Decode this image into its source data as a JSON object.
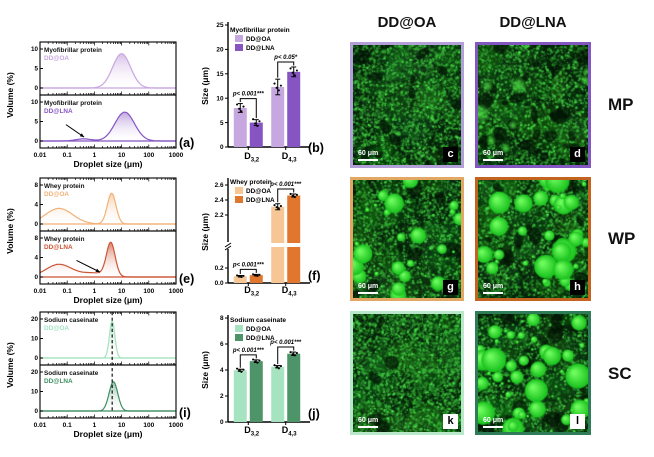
{
  "chart_data": [
    {
      "id": "a",
      "type": "area",
      "panel_tag": "(a)",
      "xlabel": "Droplet size (μm)",
      "ylabel": "Volume (%)",
      "x_scale": "log",
      "x_range": [
        0.01,
        1000
      ],
      "x_ticks": [
        "0.01",
        "0.1",
        "1",
        "10",
        "100",
        "1000"
      ],
      "subplots": [
        {
          "title": "Myofibrillar protein",
          "series": "DD@OA",
          "color": "#c7a7e0",
          "ylim": [
            0,
            10
          ],
          "yticks": [
            0,
            5,
            10
          ],
          "peaks": [
            {
              "center_um": 10,
              "height_pct": 8.8,
              "log_width": 0.33
            }
          ]
        },
        {
          "title": "Myofibrillar protein",
          "series": "DD@LNA",
          "color": "#8655c2",
          "ylim": [
            0,
            10
          ],
          "yticks": [
            0,
            5,
            10
          ],
          "peaks": [
            {
              "center_um": 13,
              "height_pct": 7.4,
              "log_width": 0.36
            },
            {
              "center_um": 0.4,
              "height_pct": 0.55,
              "log_width": 0.28
            }
          ],
          "arrow": {
            "from_um": 0.09,
            "from_val": 4.2,
            "to_um": 0.42,
            "to_val": 1.0
          }
        }
      ]
    },
    {
      "id": "b",
      "type": "bar",
      "panel_tag": "(b)",
      "title": "Myofibrillar protein",
      "ylabel": "Size (μm)",
      "ylim": [
        0,
        25
      ],
      "yticks": [
        {
          "v": 0,
          "label": "0"
        },
        {
          "v": 5,
          "label": "5"
        },
        {
          "v": 10,
          "label": "10"
        },
        {
          "v": 15,
          "label": "15"
        },
        {
          "v": 20,
          "label": "20"
        },
        {
          "v": 25,
          "label": "25"
        }
      ],
      "categories": [
        {
          "main": "D",
          "sub": "3,2"
        },
        {
          "main": "D",
          "sub": "4,3"
        }
      ],
      "series": [
        {
          "name": "DD@OA",
          "color": "#c7a7e0",
          "values": [
            8.0,
            12.3
          ],
          "errors": [
            0.9,
            1.6
          ]
        },
        {
          "name": "DD@LNA",
          "color": "#8655c2",
          "values": [
            5.0,
            15.4
          ],
          "errors": [
            0.6,
            1.0
          ]
        }
      ],
      "significance": [
        "p< 0.001***",
        "p< 0.05*"
      ]
    },
    {
      "id": "e",
      "type": "area",
      "panel_tag": "(e)",
      "xlabel": "Droplet size (μm)",
      "ylabel": "Volume (%)",
      "x_scale": "log",
      "x_range": [
        0.01,
        1000
      ],
      "x_ticks": [
        "0.01",
        "0.1",
        "1",
        "10",
        "100",
        "1000"
      ],
      "subplots": [
        {
          "title": "Whey protein",
          "series": "DD@OA",
          "color": "#f2b176",
          "ylim": [
            0,
            8
          ],
          "yticks": [
            0,
            4,
            8
          ],
          "peaks": [
            {
              "center_um": 0.05,
              "height_pct": 3.2,
              "log_width": 0.5
            },
            {
              "center_um": 4.3,
              "height_pct": 6.3,
              "log_width": 0.16
            }
          ]
        },
        {
          "title": "Whey protein",
          "series": "DD@LNA",
          "color": "#cc5535",
          "ylim": [
            0,
            8
          ],
          "yticks": [
            0,
            4,
            8
          ],
          "peaks": [
            {
              "center_um": 0.05,
              "height_pct": 2.6,
              "log_width": 0.48
            },
            {
              "center_um": 1.0,
              "height_pct": 0.8,
              "log_width": 0.45
            },
            {
              "center_um": 4.0,
              "height_pct": 6.8,
              "log_width": 0.16
            }
          ],
          "arrow": {
            "from_um": 0.22,
            "from_val": 3.4,
            "to_um": 1.6,
            "to_val": 1.0
          }
        }
      ]
    },
    {
      "id": "f",
      "type": "bar",
      "panel_tag": "(f)",
      "title": "Whey protein",
      "ylabel": "Size (μm)",
      "broken_axis": true,
      "yticks": [
        {
          "v": 0,
          "label": "0.0"
        },
        {
          "v": 0.2,
          "label": "0.2"
        },
        {
          "v": 2.2,
          "label": "2.2"
        },
        {
          "v": 2.4,
          "label": "2.4"
        },
        {
          "v": 2.6,
          "label": "2.6"
        }
      ],
      "categories": [
        {
          "main": "D",
          "sub": "3,2"
        },
        {
          "main": "D",
          "sub": "4,3"
        }
      ],
      "series": [
        {
          "name": "DD@OA",
          "color": "#f6c694",
          "values": [
            0.09,
            2.31
          ],
          "errors": [
            0.01,
            0.04
          ]
        },
        {
          "name": "DD@LNA",
          "color": "#e1762f",
          "values": [
            0.105,
            2.46
          ],
          "errors": [
            0.01,
            0.02
          ]
        }
      ],
      "significance": [
        "p< 0.001***",
        "p< 0.001***"
      ]
    },
    {
      "id": "i",
      "type": "area",
      "panel_tag": "(i)",
      "xlabel": "Droplet size (μm)",
      "ylabel": "Volume (%)",
      "x_scale": "log",
      "x_range": [
        0.01,
        1000
      ],
      "x_ticks": [
        "0.01",
        "0.1",
        "1",
        "10",
        "100",
        "1000"
      ],
      "dashed_line_um": 4.5,
      "subplots": [
        {
          "title": "Sodium caseinate",
          "series": "DD@OA",
          "color": "#a6e3c0",
          "ylim": [
            0,
            20
          ],
          "yticks": [
            0,
            10,
            20
          ],
          "peaks": [
            {
              "center_um": 4.5,
              "height_pct": 19,
              "log_width": 0.1
            }
          ]
        },
        {
          "title": "Sodium caseinate",
          "series": "DD@LNA",
          "color": "#3f8f63",
          "ylim": [
            0,
            20
          ],
          "yticks": [
            0,
            10,
            20
          ],
          "peaks": [
            {
              "center_um": 5.0,
              "height_pct": 15,
              "log_width": 0.16
            }
          ]
        }
      ]
    },
    {
      "id": "j",
      "type": "bar",
      "panel_tag": "(j)",
      "title": "Sodium caseinate",
      "ylabel": "Size (μm)",
      "ylim": [
        0,
        8
      ],
      "yticks": [
        {
          "v": 0,
          "label": "0"
        },
        {
          "v": 2,
          "label": "2"
        },
        {
          "v": 4,
          "label": "4"
        },
        {
          "v": 6,
          "label": "6"
        },
        {
          "v": 8,
          "label": "8"
        }
      ],
      "categories": [
        {
          "main": "D",
          "sub": "3,2"
        },
        {
          "main": "D",
          "sub": "4,3"
        }
      ],
      "series": [
        {
          "name": "DD@OA",
          "color": "#a6e3c0",
          "values": [
            3.98,
            4.25
          ],
          "errors": [
            0.08,
            0.09
          ]
        },
        {
          "name": "DD@LNA",
          "color": "#4d9468",
          "values": [
            4.68,
            5.25
          ],
          "errors": [
            0.1,
            0.13
          ]
        }
      ],
      "significance": [
        "p< 0.001***",
        "p< 0.001***"
      ]
    }
  ],
  "micrographs": {
    "column_headers": [
      "DD@OA",
      "DD@LNA"
    ],
    "row_labels": [
      "MP",
      "WP",
      "SC"
    ],
    "scale_bar_label": "60 μm",
    "panels": [
      {
        "letter": "c",
        "row": "MP",
        "column": "DD@OA",
        "border_color": "#b3a0d8",
        "letter_box": "black",
        "texture": {
          "seed": 3,
          "dots": 3600,
          "patches": 18,
          "droplets": 0,
          "droplet_rmax": 0,
          "blobs": 0
        }
      },
      {
        "letter": "d",
        "row": "MP",
        "column": "DD@LNA",
        "border_color": "#8257c0",
        "letter_box": "black",
        "texture": {
          "seed": 7,
          "dots": 3000,
          "patches": 30,
          "droplets": 0,
          "droplet_rmax": 0,
          "blobs": 8
        }
      },
      {
        "letter": "g",
        "row": "WP",
        "column": "DD@OA",
        "border_color": "#e2a763",
        "letter_box": "black",
        "texture": {
          "seed": 11,
          "dots": 3000,
          "patches": 14,
          "droplets": 26,
          "droplet_rmax": 9,
          "blobs": 0
        }
      },
      {
        "letter": "h",
        "row": "WP",
        "column": "DD@LNA",
        "border_color": "#c2641f",
        "letter_box": "black",
        "texture": {
          "seed": 13,
          "dots": 2900,
          "patches": 18,
          "droplets": 40,
          "droplet_rmax": 11,
          "blobs": 0,
          "right_bias": true
        }
      },
      {
        "letter": "k",
        "row": "SC",
        "column": "DD@OA",
        "border_color": "#b9e7c9",
        "letter_box": "white",
        "texture": {
          "seed": 17,
          "dots": 4200,
          "patches": 8,
          "droplets": 0,
          "droplet_rmax": 0,
          "blobs": 0
        }
      },
      {
        "letter": "l",
        "row": "SC",
        "column": "DD@LNA",
        "border_color": "#2e7d56",
        "letter_box": "white",
        "texture": {
          "seed": 19,
          "dots": 2600,
          "patches": 30,
          "droplets": 46,
          "droplet_rmax": 12,
          "blobs": 0
        }
      }
    ]
  }
}
